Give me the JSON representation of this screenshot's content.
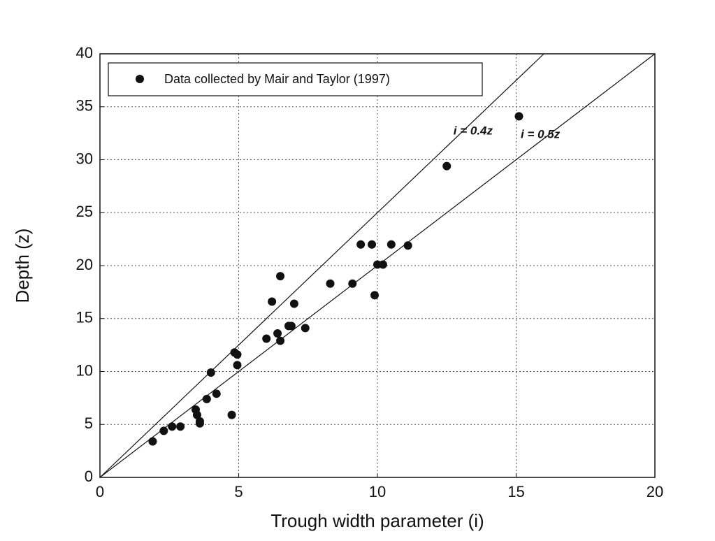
{
  "chart_data": {
    "type": "scatter",
    "xlabel": "Trough width parameter (i)",
    "ylabel": "Depth (z)",
    "xlim": [
      0,
      20
    ],
    "ylim": [
      0,
      40
    ],
    "xticks": [
      0,
      5,
      10,
      15,
      20
    ],
    "yticks": [
      0,
      5,
      10,
      15,
      20,
      25,
      30,
      35,
      40
    ],
    "grid": true,
    "legend": "upper left",
    "series": [
      {
        "name": "Data collected by Mair and Taylor (1997)",
        "type": "scatter",
        "color": "#111111",
        "x": [
          1.9,
          2.3,
          2.6,
          2.9,
          3.45,
          3.5,
          3.6,
          3.6,
          3.85,
          4.0,
          4.2,
          4.75,
          4.85,
          4.95,
          4.95,
          6.0,
          6.2,
          6.5,
          6.4,
          6.5,
          6.8,
          7.0,
          6.9,
          7.4,
          8.3,
          9.1,
          9.4,
          9.8,
          9.9,
          10.0,
          10.2,
          10.5,
          11.1,
          12.5,
          15.1
        ],
        "values": [
          3.4,
          4.4,
          4.8,
          4.8,
          6.4,
          5.9,
          5.3,
          5.1,
          7.4,
          9.9,
          7.9,
          5.9,
          11.8,
          10.6,
          11.6,
          13.1,
          16.6,
          19.0,
          13.6,
          12.9,
          14.3,
          16.4,
          14.3,
          14.1,
          18.3,
          18.3,
          22.0,
          22.0,
          17.2,
          20.1,
          20.1,
          22.0,
          21.9,
          29.4,
          34.1
        ]
      },
      {
        "name": "i = 0.4z",
        "type": "line",
        "color": "#111111",
        "x": [
          0,
          16
        ],
        "values": [
          0,
          40
        ]
      },
      {
        "name": "i = 0.5z",
        "type": "line",
        "color": "#111111",
        "x": [
          0,
          20
        ],
        "values": [
          0,
          40
        ]
      }
    ]
  }
}
